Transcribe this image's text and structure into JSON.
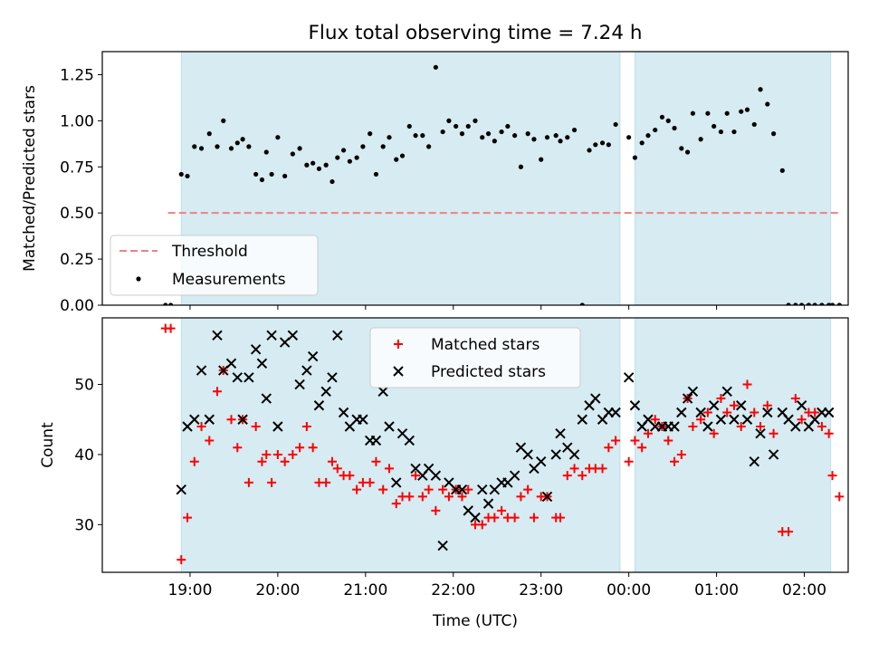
{
  "title": "Flux total observing time = 7.24 h",
  "chart_data": [
    {
      "type": "scatter",
      "ylabel": "Matched/Predicted stars",
      "ylim": [
        0,
        1.375
      ],
      "yticks": [
        "0.00",
        "0.25",
        "0.50",
        "0.75",
        "1.00",
        "1.25"
      ],
      "ytick_values": [
        0,
        0.25,
        0.5,
        0.75,
        1.0,
        1.25
      ],
      "xlim_hours": [
        18.0,
        26.5
      ],
      "shaded_intervals_hours": [
        [
          18.9,
          23.9
        ],
        [
          24.07,
          26.3
        ]
      ],
      "threshold": {
        "label": "Threshold",
        "value": 0.5,
        "x_range_hours": [
          18.75,
          26.4
        ],
        "color": "#f08080"
      },
      "legend": {
        "position": "lower left",
        "entries": [
          "Threshold",
          "Measurements"
        ]
      },
      "series": [
        {
          "name": "Measurements",
          "color": "#000000",
          "x_hours": [
            18.72,
            18.78,
            18.9,
            18.97,
            19.05,
            19.13,
            19.22,
            19.31,
            19.38,
            19.47,
            19.54,
            19.6,
            19.67,
            19.75,
            19.82,
            19.87,
            19.93,
            20.0,
            20.08,
            20.17,
            20.25,
            20.33,
            20.4,
            20.47,
            20.55,
            20.62,
            20.68,
            20.75,
            20.82,
            20.9,
            20.97,
            21.05,
            21.12,
            21.2,
            21.27,
            21.35,
            21.42,
            21.5,
            21.57,
            21.65,
            21.72,
            21.8,
            21.88,
            21.95,
            22.03,
            22.1,
            22.17,
            22.25,
            22.33,
            22.4,
            22.47,
            22.55,
            22.62,
            22.7,
            22.77,
            22.85,
            22.92,
            23.0,
            23.07,
            23.17,
            23.22,
            23.3,
            23.38,
            23.47,
            23.55,
            23.62,
            23.7,
            23.77,
            23.85,
            24.0,
            24.07,
            24.15,
            24.22,
            24.3,
            24.38,
            24.45,
            24.52,
            24.6,
            24.67,
            24.73,
            24.82,
            24.9,
            24.97,
            25.05,
            25.12,
            25.2,
            25.28,
            25.35,
            25.43,
            25.5,
            25.58,
            25.65,
            25.75,
            25.82,
            25.9,
            25.97,
            26.05,
            26.12,
            26.2,
            26.28,
            26.32,
            26.4
          ],
          "y": [
            0.0,
            0.0,
            0.71,
            0.7,
            0.86,
            0.85,
            0.93,
            0.86,
            1.0,
            0.85,
            0.88,
            0.9,
            0.86,
            0.71,
            0.68,
            0.83,
            0.71,
            0.91,
            0.7,
            0.82,
            0.85,
            0.76,
            0.77,
            0.74,
            0.76,
            0.67,
            0.8,
            0.84,
            0.78,
            0.8,
            0.86,
            0.93,
            0.71,
            0.86,
            0.91,
            0.79,
            0.81,
            0.97,
            0.92,
            0.92,
            0.86,
            1.29,
            0.94,
            1.0,
            0.97,
            0.93,
            0.97,
            1.0,
            0.91,
            0.93,
            0.89,
            0.94,
            0.97,
            0.92,
            0.75,
            0.93,
            0.9,
            0.79,
            0.91,
            0.92,
            0.89,
            0.91,
            0.95,
            0.0,
            0.84,
            0.87,
            0.88,
            0.87,
            0.98,
            0.91,
            0.8,
            0.88,
            0.92,
            0.95,
            1.02,
            1.0,
            0.96,
            0.85,
            0.83,
            1.04,
            0.9,
            1.04,
            0.97,
            0.94,
            1.04,
            0.94,
            1.05,
            1.06,
            0.98,
            1.17,
            1.09,
            0.93,
            0.73,
            0.0,
            0.0,
            0.0,
            0.0,
            0.0,
            0.0,
            0.0,
            0.0,
            0.0
          ]
        }
      ]
    },
    {
      "type": "scatter",
      "xlabel": "Time (UTC)",
      "ylabel": "Count",
      "ylim": [
        23.2,
        59.5
      ],
      "yticks": [
        "30",
        "40",
        "50"
      ],
      "ytick_values": [
        30,
        40,
        50
      ],
      "xlim_hours": [
        18.0,
        26.5
      ],
      "xticks": [
        "19:00",
        "20:00",
        "21:00",
        "22:00",
        "23:00",
        "00:00",
        "01:00",
        "02:00"
      ],
      "xtick_hours": [
        19,
        20,
        21,
        22,
        23,
        24,
        25,
        26
      ],
      "shaded_intervals_hours": [
        [
          18.9,
          23.9
        ],
        [
          24.07,
          26.3
        ]
      ],
      "legend": {
        "position": "upper center",
        "entries": [
          "Matched stars",
          "Predicted stars"
        ]
      },
      "series": [
        {
          "name": "Matched stars",
          "marker": "+",
          "color": "#ff0000",
          "x_hours": [
            18.72,
            18.78,
            18.9,
            18.97,
            19.05,
            19.13,
            19.22,
            19.31,
            19.38,
            19.47,
            19.54,
            19.6,
            19.67,
            19.75,
            19.82,
            19.87,
            19.93,
            20.0,
            20.08,
            20.17,
            20.25,
            20.33,
            20.4,
            20.47,
            20.55,
            20.62,
            20.68,
            20.75,
            20.82,
            20.9,
            20.97,
            21.05,
            21.12,
            21.2,
            21.27,
            21.35,
            21.42,
            21.5,
            21.57,
            21.65,
            21.72,
            21.8,
            21.88,
            21.95,
            22.03,
            22.1,
            22.17,
            22.25,
            22.33,
            22.4,
            22.47,
            22.55,
            22.62,
            22.7,
            22.77,
            22.85,
            22.92,
            23.0,
            23.07,
            23.17,
            23.22,
            23.3,
            23.38,
            23.47,
            23.55,
            23.62,
            23.7,
            23.77,
            23.85,
            24.0,
            24.07,
            24.15,
            24.22,
            24.3,
            24.38,
            24.45,
            24.52,
            24.6,
            24.67,
            24.73,
            24.82,
            24.9,
            24.97,
            25.05,
            25.12,
            25.2,
            25.28,
            25.35,
            25.43,
            25.5,
            25.58,
            25.65,
            25.75,
            25.82,
            25.9,
            25.97,
            26.05,
            26.12,
            26.2,
            26.28,
            26.32,
            26.4
          ],
          "y": [
            58,
            58,
            25,
            31,
            39,
            44,
            42,
            49,
            52,
            45,
            41,
            45,
            36,
            44,
            39,
            40,
            36,
            40,
            39,
            40,
            41,
            44,
            41,
            36,
            36,
            39,
            38,
            37,
            37,
            35,
            36,
            36,
            39,
            35,
            38,
            33,
            34,
            34,
            37,
            34,
            35,
            32,
            35,
            34,
            35,
            34,
            35,
            30,
            30,
            31,
            31,
            32,
            31,
            31,
            34,
            35,
            31,
            34,
            34,
            31,
            31,
            37,
            38,
            37,
            38,
            38,
            38,
            41,
            42,
            39,
            42,
            41,
            43,
            45,
            44,
            42,
            39,
            40,
            48,
            44,
            45,
            46,
            43,
            48,
            46,
            47,
            44,
            50,
            46,
            44,
            47,
            43,
            29,
            29,
            48,
            45,
            46,
            46,
            44,
            43,
            37,
            34
          ]
        },
        {
          "name": "Predicted stars",
          "marker": "x",
          "color": "#000000",
          "x_hours": [
            18.9,
            18.97,
            19.05,
            19.13,
            19.22,
            19.31,
            19.38,
            19.47,
            19.54,
            19.6,
            19.67,
            19.75,
            19.82,
            19.87,
            19.93,
            20.0,
            20.08,
            20.17,
            20.25,
            20.33,
            20.4,
            20.47,
            20.55,
            20.62,
            20.68,
            20.75,
            20.82,
            20.9,
            20.97,
            21.05,
            21.12,
            21.2,
            21.27,
            21.35,
            21.42,
            21.5,
            21.57,
            21.65,
            21.72,
            21.8,
            21.88,
            21.95,
            22.03,
            22.1,
            22.17,
            22.25,
            22.33,
            22.4,
            22.47,
            22.55,
            22.62,
            22.7,
            22.77,
            22.85,
            22.92,
            23.0,
            23.07,
            23.17,
            23.22,
            23.3,
            23.38,
            23.47,
            23.55,
            23.62,
            23.7,
            23.77,
            23.85,
            24.0,
            24.07,
            24.15,
            24.22,
            24.3,
            24.38,
            24.45,
            24.52,
            24.6,
            24.67,
            24.73,
            24.82,
            24.9,
            24.97,
            25.05,
            25.12,
            25.2,
            25.28,
            25.35,
            25.43,
            25.5,
            25.58,
            25.65,
            25.75,
            25.82,
            25.9,
            25.97,
            26.05,
            26.12,
            26.2,
            26.28
          ],
          "y": [
            35,
            44,
            45,
            52,
            45,
            57,
            52,
            53,
            51,
            45,
            51,
            55,
            53,
            48,
            57,
            44,
            56,
            57,
            50,
            52,
            54,
            47,
            49,
            51,
            57,
            46,
            44,
            45,
            45,
            42,
            42,
            49,
            44,
            36,
            43,
            42,
            38,
            37,
            38,
            37,
            27,
            36,
            35,
            35,
            32,
            31,
            35,
            33,
            35,
            36,
            36,
            37,
            41,
            40,
            38,
            39,
            34,
            40,
            43,
            41,
            40,
            45,
            47,
            48,
            45,
            46,
            46,
            51,
            47,
            44,
            45,
            44,
            44,
            44,
            44,
            46,
            48,
            49,
            46,
            44,
            47,
            45,
            49,
            45,
            47,
            45,
            39,
            43,
            46,
            40,
            46,
            45,
            44,
            47,
            44,
            45,
            46,
            46
          ]
        }
      ]
    }
  ]
}
